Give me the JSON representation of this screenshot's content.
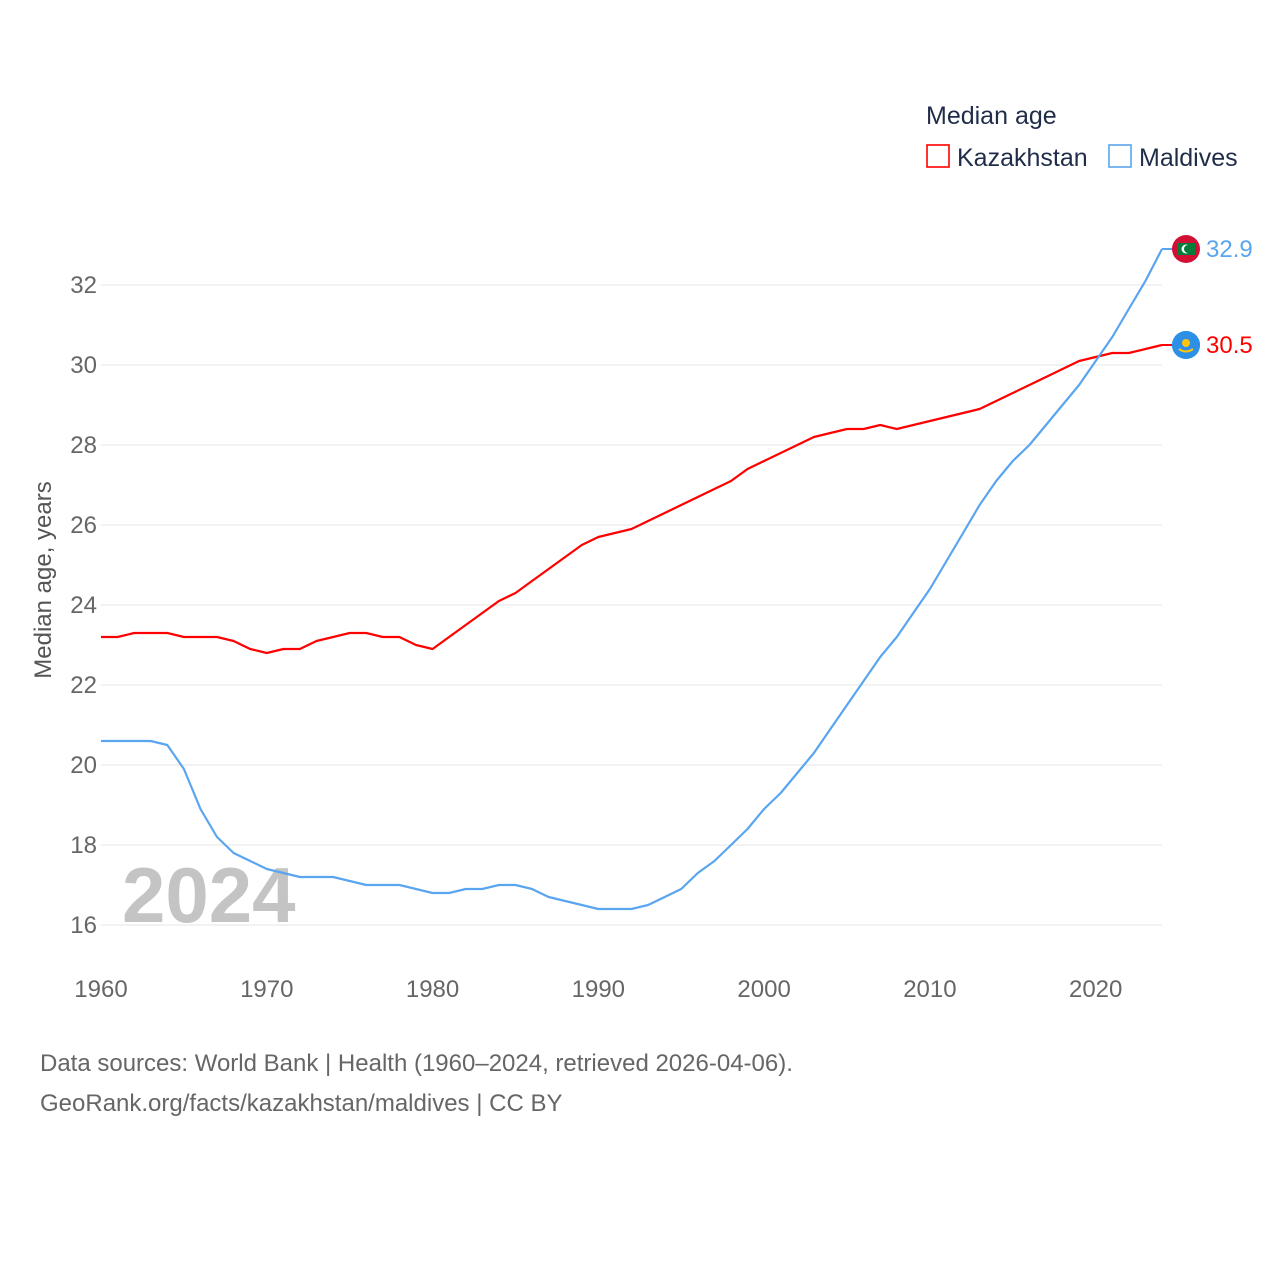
{
  "chart_data": {
    "type": "line",
    "title": "Median age",
    "ylabel": "Median age, years",
    "xlabel": "",
    "xlim": [
      1960,
      2024
    ],
    "ylim": [
      15,
      33.5
    ],
    "yticks": [
      16,
      18,
      20,
      22,
      24,
      26,
      28,
      30,
      32
    ],
    "xticks": [
      1960,
      1970,
      1980,
      1990,
      2000,
      2010,
      2020
    ],
    "grid": true,
    "legend_placement": "top-right",
    "year_watermark": "2024",
    "x": [
      1960,
      1961,
      1962,
      1963,
      1964,
      1965,
      1966,
      1967,
      1968,
      1969,
      1970,
      1971,
      1972,
      1973,
      1974,
      1975,
      1976,
      1977,
      1978,
      1979,
      1980,
      1981,
      1982,
      1983,
      1984,
      1985,
      1986,
      1987,
      1988,
      1989,
      1990,
      1991,
      1992,
      1993,
      1994,
      1995,
      1996,
      1997,
      1998,
      1999,
      2000,
      2001,
      2002,
      2003,
      2004,
      2005,
      2006,
      2007,
      2008,
      2009,
      2010,
      2011,
      2012,
      2013,
      2014,
      2015,
      2016,
      2017,
      2018,
      2019,
      2020,
      2021,
      2022,
      2023,
      2024
    ],
    "series": [
      {
        "name": "Kazakhstan",
        "color": "#ff0000",
        "end_label": "30.5",
        "flag": "kazakhstan-flag",
        "values": [
          23.2,
          23.2,
          23.3,
          23.3,
          23.3,
          23.2,
          23.2,
          23.2,
          23.1,
          22.9,
          22.8,
          22.9,
          22.9,
          23.1,
          23.2,
          23.3,
          23.3,
          23.2,
          23.2,
          23.0,
          22.9,
          23.2,
          23.5,
          23.8,
          24.1,
          24.3,
          24.6,
          24.9,
          25.2,
          25.5,
          25.7,
          25.8,
          25.9,
          26.1,
          26.3,
          26.5,
          26.7,
          26.9,
          27.1,
          27.4,
          27.6,
          27.8,
          28.0,
          28.2,
          28.3,
          28.4,
          28.4,
          28.5,
          28.4,
          28.5,
          28.6,
          28.7,
          28.8,
          28.9,
          29.1,
          29.3,
          29.5,
          29.7,
          29.9,
          30.1,
          30.2,
          30.3,
          30.3,
          30.4,
          30.5
        ]
      },
      {
        "name": "Maldives",
        "color": "#5aa5ef",
        "end_label": "32.9",
        "flag": "maldives-flag",
        "values": [
          20.6,
          20.6,
          20.6,
          20.6,
          20.5,
          19.9,
          18.9,
          18.2,
          17.8,
          17.6,
          17.4,
          17.3,
          17.2,
          17.2,
          17.2,
          17.1,
          17.0,
          17.0,
          17.0,
          16.9,
          16.8,
          16.8,
          16.9,
          16.9,
          17.0,
          17.0,
          16.9,
          16.7,
          16.6,
          16.5,
          16.4,
          16.4,
          16.4,
          16.5,
          16.7,
          16.9,
          17.3,
          17.6,
          18.0,
          18.4,
          18.9,
          19.3,
          19.8,
          20.3,
          20.9,
          21.5,
          22.1,
          22.7,
          23.2,
          23.8,
          24.4,
          25.1,
          25.8,
          26.5,
          27.1,
          27.6,
          28.0,
          28.5,
          29.0,
          29.5,
          30.1,
          30.7,
          31.4,
          32.1,
          32.9
        ]
      }
    ]
  },
  "source": {
    "line1": "Data sources: World Bank | Health (1960–2024, retrieved 2026-04-06).",
    "line2": "GeoRank.org/facts/kazakhstan/maldives | CC BY"
  }
}
